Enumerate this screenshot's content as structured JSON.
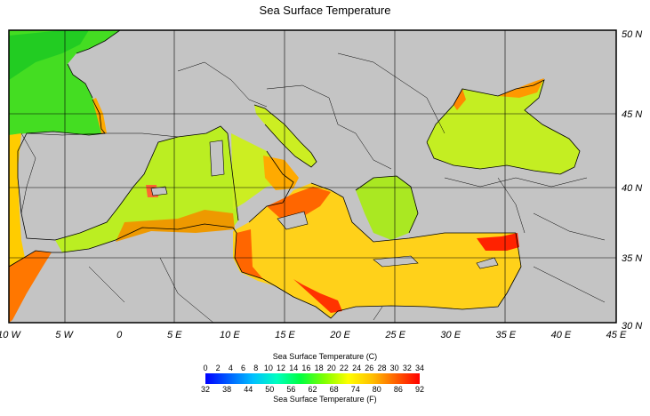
{
  "title": "Sea Surface Temperature",
  "map": {
    "region": "Mediterranean Sea and Black Sea",
    "lon_range": [
      -10,
      45
    ],
    "lat_range": [
      30,
      50
    ],
    "land_color": "#c4c4c4",
    "grid_color": "#000000",
    "lon_ticks": [
      "10 W",
      "5 W",
      "0",
      "5 E",
      "10 E",
      "15 E",
      "20 E",
      "25 E",
      "30 E",
      "35 E",
      "40 E",
      "45 E"
    ],
    "lat_ticks": [
      "50 N",
      "45 N",
      "40 N",
      "35 N",
      "30 N"
    ]
  },
  "legend": {
    "title_c": "Sea Surface Temperature (C)",
    "title_f": "Sea Surface Temperature (F)",
    "celsius_ticks": [
      "0",
      "2",
      "4",
      "6",
      "8",
      "10",
      "12",
      "14",
      "16",
      "18",
      "20",
      "22",
      "24",
      "26",
      "28",
      "30",
      "32",
      "34"
    ],
    "fahrenheit_ticks": [
      "32",
      "38",
      "44",
      "50",
      "56",
      "62",
      "68",
      "74",
      "80",
      "86",
      "92"
    ],
    "colors": [
      "#0000ff",
      "#0060ff",
      "#00c0ff",
      "#00ffc0",
      "#00ff40",
      "#80ff00",
      "#ffff00",
      "#ffc000",
      "#ff6000",
      "#ff0000"
    ]
  }
}
